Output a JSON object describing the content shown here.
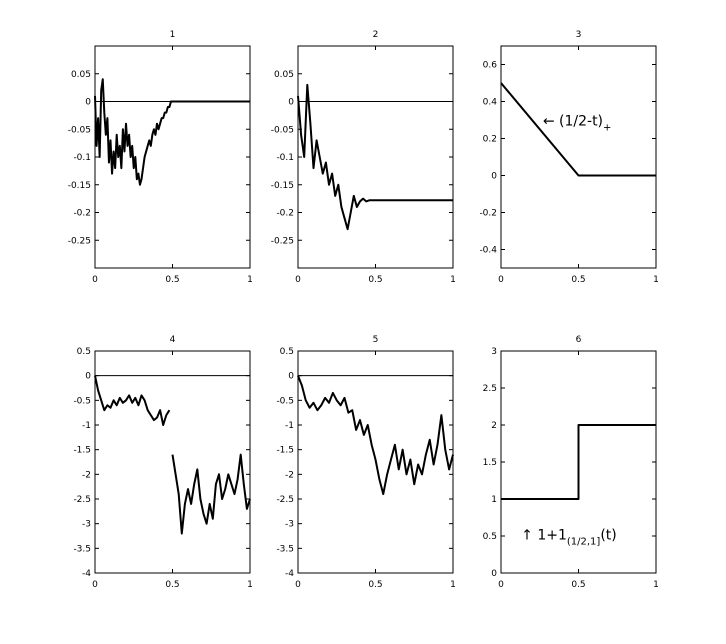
{
  "chart_data": [
    {
      "type": "line",
      "title": "1",
      "xlim": [
        0,
        1
      ],
      "xticks": [
        0,
        0.5,
        1
      ],
      "ylim": [
        -0.3,
        0.1
      ],
      "yticks": [
        0.05,
        0,
        -0.05,
        -0.1,
        -0.15,
        -0.2,
        -0.25
      ],
      "series": [
        {
          "color": "#000000",
          "linewidth": 1,
          "x": [
            0,
            1
          ],
          "values": [
            0,
            0
          ]
        },
        {
          "color": "#000000",
          "linewidth": 2,
          "x": [
            0,
            0.01,
            0.02,
            0.03,
            0.04,
            0.05,
            0.06,
            0.07,
            0.08,
            0.09,
            0.1,
            0.11,
            0.12,
            0.13,
            0.14,
            0.15,
            0.16,
            0.17,
            0.18,
            0.19,
            0.2,
            0.21,
            0.22,
            0.23,
            0.24,
            0.25,
            0.26,
            0.27,
            0.28,
            0.29,
            0.3,
            0.31,
            0.32,
            0.33,
            0.34,
            0.35,
            0.36,
            0.37,
            0.38,
            0.39,
            0.4,
            0.41,
            0.42,
            0.43,
            0.44,
            0.45,
            0.46,
            0.47,
            0.48,
            0.49,
            0.5,
            1
          ],
          "values": [
            0.01,
            -0.08,
            -0.03,
            -0.1,
            0.02,
            0.04,
            -0.02,
            -0.06,
            -0.03,
            -0.11,
            -0.07,
            -0.13,
            -0.09,
            -0.12,
            -0.06,
            -0.1,
            -0.08,
            -0.12,
            -0.05,
            -0.09,
            -0.04,
            -0.08,
            -0.06,
            -0.1,
            -0.08,
            -0.12,
            -0.1,
            -0.14,
            -0.13,
            -0.15,
            -0.14,
            -0.12,
            -0.1,
            -0.09,
            -0.08,
            -0.07,
            -0.08,
            -0.06,
            -0.05,
            -0.06,
            -0.04,
            -0.05,
            -0.04,
            -0.03,
            -0.03,
            -0.02,
            -0.02,
            -0.01,
            -0.01,
            0,
            0,
            0
          ]
        }
      ]
    },
    {
      "type": "line",
      "title": "2",
      "xlim": [
        0,
        1
      ],
      "xticks": [
        0,
        0.5,
        1
      ],
      "ylim": [
        -0.3,
        0.1
      ],
      "yticks": [
        0.05,
        0,
        -0.05,
        -0.1,
        -0.15,
        -0.2,
        -0.25
      ],
      "series": [
        {
          "color": "#000000",
          "linewidth": 1,
          "x": [
            0,
            1
          ],
          "values": [
            0,
            0
          ]
        },
        {
          "color": "#000000",
          "linewidth": 2,
          "x": [
            0,
            0.02,
            0.04,
            0.06,
            0.08,
            0.1,
            0.12,
            0.14,
            0.16,
            0.18,
            0.2,
            0.22,
            0.24,
            0.26,
            0.28,
            0.3,
            0.32,
            0.34,
            0.36,
            0.38,
            0.4,
            0.42,
            0.44,
            0.46,
            0.48,
            0.5,
            1
          ],
          "values": [
            0.01,
            -0.06,
            -0.1,
            0.03,
            -0.04,
            -0.12,
            -0.07,
            -0.1,
            -0.13,
            -0.11,
            -0.15,
            -0.13,
            -0.17,
            -0.15,
            -0.19,
            -0.21,
            -0.23,
            -0.2,
            -0.17,
            -0.19,
            -0.18,
            -0.175,
            -0.18,
            -0.178,
            -0.178,
            -0.178,
            -0.178
          ]
        }
      ]
    },
    {
      "type": "line",
      "title": "3",
      "xlim": [
        0,
        1
      ],
      "xticks": [
        0,
        0.5,
        1
      ],
      "ylim": [
        -0.5,
        0.7
      ],
      "yticks": [
        0.6,
        0.4,
        0.2,
        0,
        -0.2,
        -0.4
      ],
      "annotation": {
        "text": "← (1/2-t)",
        "subscript": "+"
      },
      "series": [
        {
          "color": "#000000",
          "linewidth": 2,
          "x": [
            0,
            0.5,
            1
          ],
          "values": [
            0.5,
            0,
            0
          ]
        }
      ]
    },
    {
      "type": "line",
      "title": "4",
      "xlim": [
        0,
        1
      ],
      "xticks": [
        0,
        0.5,
        1
      ],
      "ylim": [
        -4,
        0.5
      ],
      "yticks": [
        0.5,
        0,
        -0.5,
        -1,
        -1.5,
        -2,
        -2.5,
        -3,
        -3.5,
        -4
      ],
      "series": [
        {
          "color": "#000000",
          "linewidth": 1,
          "x": [
            0,
            1
          ],
          "values": [
            0,
            0
          ]
        },
        {
          "color": "#000000",
          "linewidth": 2,
          "x": [
            0,
            0.02,
            0.04,
            0.06,
            0.08,
            0.1,
            0.12,
            0.14,
            0.16,
            0.18,
            0.2,
            0.22,
            0.24,
            0.26,
            0.28,
            0.3,
            0.32,
            0.34,
            0.36,
            0.38,
            0.4,
            0.42,
            0.44,
            0.46,
            0.48,
            0.49,
            0.5,
            0.52,
            0.54,
            0.56,
            0.58,
            0.6,
            0.62,
            0.64,
            0.66,
            0.68,
            0.7,
            0.72,
            0.74,
            0.76,
            0.78,
            0.8,
            0.82,
            0.84,
            0.86,
            0.88,
            0.9,
            0.92,
            0.94,
            0.96,
            0.98,
            1
          ],
          "values": [
            0,
            -0.3,
            -0.5,
            -0.7,
            -0.6,
            -0.65,
            -0.5,
            -0.6,
            -0.45,
            -0.55,
            -0.5,
            -0.4,
            -0.55,
            -0.45,
            -0.6,
            -0.4,
            -0.5,
            -0.7,
            -0.8,
            -0.9,
            -0.85,
            -0.7,
            -1.0,
            -0.8,
            -0.7,
            null,
            -1.6,
            -2.0,
            -2.4,
            -3.2,
            -2.6,
            -2.3,
            -2.6,
            -2.2,
            -1.9,
            -2.5,
            -2.8,
            -3.0,
            -2.6,
            -2.9,
            -2.2,
            -2.0,
            -2.5,
            -2.3,
            -2.0,
            -2.2,
            -2.4,
            -2.1,
            -1.6,
            -2.2,
            -2.7,
            -2.5
          ]
        }
      ]
    },
    {
      "type": "line",
      "title": "5",
      "xlim": [
        0,
        1
      ],
      "xticks": [
        0,
        0.5,
        1
      ],
      "ylim": [
        -4,
        0.5
      ],
      "yticks": [
        0.5,
        0,
        -0.5,
        -1,
        -1.5,
        -2,
        -2.5,
        -3,
        -3.5,
        -4
      ],
      "series": [
        {
          "color": "#000000",
          "linewidth": 1,
          "x": [
            0,
            1
          ],
          "values": [
            0,
            0
          ]
        },
        {
          "color": "#000000",
          "linewidth": 2,
          "x": [
            0,
            0.025,
            0.05,
            0.075,
            0.1,
            0.125,
            0.15,
            0.175,
            0.2,
            0.225,
            0.25,
            0.275,
            0.3,
            0.325,
            0.35,
            0.375,
            0.4,
            0.425,
            0.45,
            0.475,
            0.5,
            0.525,
            0.55,
            0.575,
            0.6,
            0.625,
            0.65,
            0.675,
            0.7,
            0.725,
            0.75,
            0.775,
            0.8,
            0.825,
            0.85,
            0.875,
            0.9,
            0.925,
            0.95,
            0.975,
            1
          ],
          "values": [
            0,
            -0.2,
            -0.5,
            -0.65,
            -0.55,
            -0.7,
            -0.6,
            -0.45,
            -0.55,
            -0.35,
            -0.5,
            -0.6,
            -0.45,
            -0.75,
            -0.7,
            -1.1,
            -0.9,
            -1.2,
            -1.0,
            -1.4,
            -1.7,
            -2.1,
            -2.4,
            -2.0,
            -1.7,
            -1.4,
            -1.9,
            -1.5,
            -2.0,
            -1.7,
            -2.2,
            -1.8,
            -2.0,
            -1.6,
            -1.3,
            -1.8,
            -1.4,
            -0.8,
            -1.5,
            -1.9,
            -1.6
          ]
        }
      ]
    },
    {
      "type": "line",
      "title": "6",
      "xlim": [
        0,
        1
      ],
      "xticks": [
        0,
        0.5,
        1
      ],
      "ylim": [
        0,
        3
      ],
      "yticks": [
        3,
        2.5,
        2,
        1.5,
        1,
        0.5,
        0
      ],
      "annotation": {
        "text": "↑ 1+1",
        "subscript": "(1/2,1]",
        "suffix": "(t)"
      },
      "series": [
        {
          "color": "#000000",
          "linewidth": 2,
          "x": [
            0,
            0.5,
            0.5,
            1
          ],
          "values": [
            1,
            1,
            2,
            2
          ]
        }
      ]
    }
  ]
}
